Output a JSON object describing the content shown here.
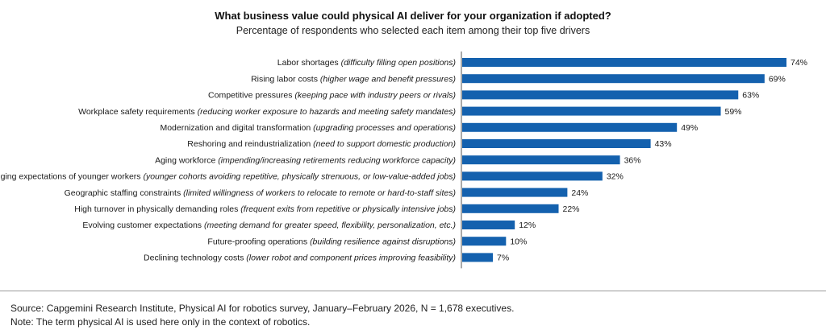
{
  "chart_data": {
    "type": "bar",
    "orientation": "horizontal",
    "title": "What business value could physical AI deliver for your organization if adopted?",
    "subtitle": "Percentage of respondents who selected each item among their top five drivers",
    "bar_color": "#1461ae",
    "value_suffix": "%",
    "xlim": [
      0,
      74
    ],
    "categories": [
      {
        "label": "Labor shortages",
        "desc": "(difficulty filling open positions)"
      },
      {
        "label": "Rising labor costs",
        "desc": "(higher wage and benefit pressures)"
      },
      {
        "label": "Competitive pressures",
        "desc": "(keeping pace with industry peers or rivals)"
      },
      {
        "label": "Workplace safety requirements",
        "desc": "(reducing worker exposure to hazards and meeting safety mandates)"
      },
      {
        "label": "Modernization and digital transformation",
        "desc": "(upgrading processes and operations)"
      },
      {
        "label": "Reshoring and reindustrialization",
        "desc": "(need to support domestic production)"
      },
      {
        "label": "Aging workforce",
        "desc": "(impending/increasing retirements reducing workforce capacity)"
      },
      {
        "label": "Changing expectations of younger workers",
        "desc": "(younger cohorts avoiding repetitive, physically strenuous, or low-value-added jobs)"
      },
      {
        "label": "Geographic staffing constraints",
        "desc": "(limited willingness of workers to relocate to remote or hard-to-staff sites)"
      },
      {
        "label": "High turnover in physically demanding roles",
        "desc": "(frequent exits from repetitive or physically intensive jobs)"
      },
      {
        "label": "Evolving customer expectations",
        "desc": "(meeting demand for greater speed, flexibility, personalization, etc.)"
      },
      {
        "label": "Future-proofing operations",
        "desc": "(building resilience against disruptions)"
      },
      {
        "label": "Declining technology costs",
        "desc": "(lower robot and component prices improving feasibility)"
      }
    ],
    "values": [
      74,
      69,
      63,
      59,
      49,
      43,
      36,
      32,
      24,
      22,
      12,
      10,
      7
    ]
  },
  "footer": {
    "source": "Source: Capgemini Research Institute, Physical AI for robotics survey, January–February 2026, N = 1,678 executives.",
    "note": "Note: The term physical AI is used here only in the context of robotics."
  }
}
